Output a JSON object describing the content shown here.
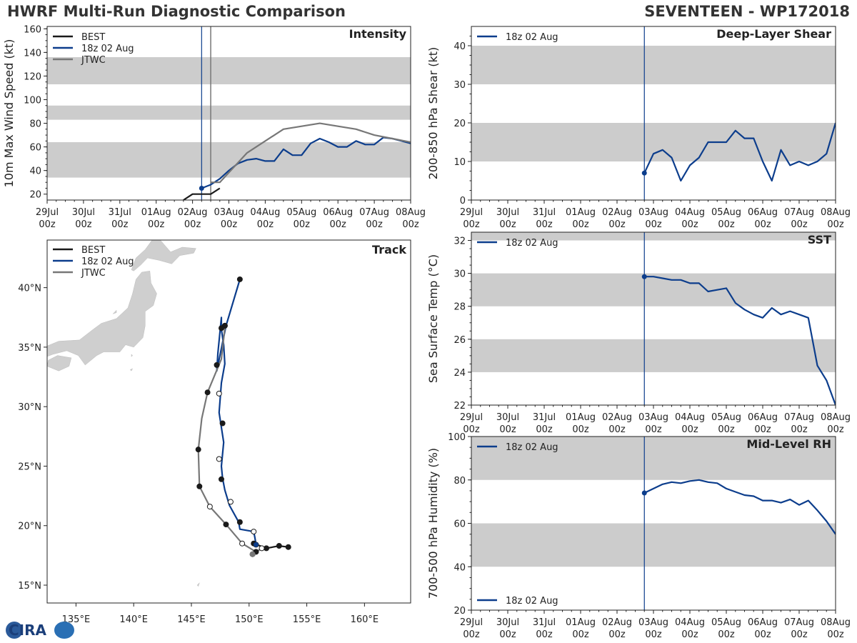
{
  "header": {
    "title_left": "HWRF Multi-Run Diagnostic Comparison",
    "title_right": "SEVENTEEN - WP172018"
  },
  "logo": {
    "text": "CIRA"
  },
  "colors": {
    "best": "#1a1a1a",
    "hwrf": "#0c3d8c",
    "jtwc": "#777777",
    "band": "#cccccc",
    "axis": "#222222"
  },
  "time_ticks": [
    "29Jul\n00z",
    "30Jul\n00z",
    "31Jul\n00z",
    "01Aug\n00z",
    "02Aug\n00z",
    "03Aug\n00z",
    "04Aug\n00z",
    "05Aug\n00z",
    "06Aug\n00z",
    "07Aug\n00z",
    "08Aug\n00z"
  ],
  "chart_data": [
    {
      "id": "intensity",
      "type": "line",
      "title": "Intensity",
      "ylabel": "10m Max Wind Speed (kt)",
      "xlim": [
        0,
        240
      ],
      "ylim": [
        15,
        162
      ],
      "yticks": [
        20,
        40,
        60,
        80,
        100,
        120,
        140,
        160
      ],
      "bands": [
        [
          34,
          64
        ],
        [
          83,
          95
        ],
        [
          113,
          136
        ]
      ],
      "init_hour": 102,
      "jtwc_line_hour": 108,
      "legend": [
        "BEST",
        "18z 02 Aug",
        "JTWC"
      ],
      "series": [
        {
          "name": "BEST",
          "color_key": "best",
          "hours": [
            90,
            96,
            102,
            108,
            114
          ],
          "values": [
            15,
            20,
            20,
            20,
            25
          ]
        },
        {
          "name": "18z 02 Aug",
          "color_key": "hwrf",
          "marker_first": true,
          "hours": [
            102,
            108,
            114,
            120,
            126,
            132,
            138,
            144,
            150,
            156,
            162,
            168,
            174,
            180,
            186,
            192,
            198,
            204,
            210,
            216,
            222,
            228,
            234,
            240
          ],
          "values": [
            25,
            28,
            33,
            40,
            46,
            49,
            50,
            48,
            48,
            58,
            53,
            53,
            63,
            67,
            64,
            60,
            60,
            65,
            62,
            62,
            68,
            67,
            65,
            63
          ]
        },
        {
          "name": "JTWC",
          "color_key": "jtwc",
          "hours": [
            108,
            114,
            132,
            156,
            180,
            204,
            216,
            228,
            240
          ],
          "values": [
            30,
            30,
            55,
            75,
            80,
            75,
            70,
            67,
            64
          ]
        }
      ]
    },
    {
      "id": "shear",
      "type": "line",
      "title": "Deep-Layer Shear",
      "ylabel": "200-850 hPa Shear (kt)",
      "xlim": [
        0,
        240
      ],
      "ylim": [
        0,
        45
      ],
      "yticks": [
        0,
        10,
        20,
        30,
        40
      ],
      "bands": [
        [
          10,
          20
        ],
        [
          30,
          40
        ]
      ],
      "init_hour": 114,
      "legend": [
        "18z 02 Aug"
      ],
      "series": [
        {
          "name": "18z 02 Aug",
          "color_key": "hwrf",
          "marker_first": true,
          "hours": [
            114,
            120,
            126,
            132,
            138,
            144,
            150,
            156,
            162,
            168,
            174,
            180,
            186,
            192,
            198,
            204,
            210,
            216,
            222,
            228,
            234,
            240
          ],
          "values": [
            7,
            12,
            13,
            11,
            5,
            9,
            11,
            15,
            15,
            15,
            18,
            16,
            16,
            10,
            5,
            13,
            9,
            10,
            9,
            10,
            12,
            20
          ]
        }
      ]
    },
    {
      "id": "sst",
      "type": "line",
      "title": "SST",
      "ylabel": "Sea Surface Temp (°C)",
      "xlim": [
        0,
        240
      ],
      "ylim": [
        22,
        32.5
      ],
      "yticks": [
        22,
        24,
        26,
        28,
        30,
        32
      ],
      "bands": [
        [
          24,
          26
        ],
        [
          28,
          30
        ],
        [
          32,
          32.5
        ]
      ],
      "init_hour": 114,
      "legend": [
        "18z 02 Aug"
      ],
      "series": [
        {
          "name": "18z 02 Aug",
          "color_key": "hwrf",
          "marker_first": true,
          "hours": [
            114,
            120,
            126,
            132,
            138,
            144,
            150,
            156,
            162,
            168,
            174,
            180,
            186,
            192,
            198,
            204,
            210,
            216,
            222,
            228,
            234,
            240
          ],
          "values": [
            29.8,
            29.8,
            29.7,
            29.6,
            29.6,
            29.4,
            29.4,
            28.9,
            29.0,
            29.1,
            28.2,
            27.8,
            27.5,
            27.3,
            27.9,
            27.5,
            27.7,
            27.5,
            27.3,
            24.4,
            23.5,
            22.0
          ]
        }
      ]
    },
    {
      "id": "rh",
      "type": "line",
      "title": "Mid-Level RH",
      "ylabel": "700-500 hPa Humidity (%)",
      "xlim": [
        0,
        240
      ],
      "ylim": [
        20,
        100
      ],
      "yticks": [
        20,
        40,
        60,
        80,
        100
      ],
      "bands": [
        [
          40,
          60
        ],
        [
          80,
          100
        ]
      ],
      "init_hour": 114,
      "legend": [
        "18z 02 Aug"
      ],
      "series": [
        {
          "name": "18z 02 Aug",
          "color_key": "hwrf",
          "marker_first": true,
          "hours": [
            114,
            120,
            126,
            132,
            138,
            144,
            150,
            156,
            162,
            168,
            174,
            180,
            186,
            192,
            198,
            204,
            210,
            216,
            222,
            228,
            234,
            240
          ],
          "values": [
            74,
            76,
            78,
            79,
            78.5,
            79.5,
            80,
            79,
            78.5,
            76,
            74.5,
            73,
            72.5,
            70.5,
            70.5,
            69.5,
            71,
            68.5,
            70.5,
            66,
            61,
            55
          ]
        }
      ]
    },
    {
      "id": "track",
      "type": "scatter",
      "title": "Track",
      "xlim": [
        132.5,
        164
      ],
      "ylim": [
        13.5,
        44
      ],
      "xticks": [
        135,
        140,
        145,
        150,
        155,
        160
      ],
      "yticks": [
        15,
        20,
        25,
        30,
        35,
        40
      ],
      "xtick_labels": [
        "135°E",
        "140°E",
        "145°E",
        "150°E",
        "155°E",
        "160°E"
      ],
      "ytick_labels": [
        "15°N",
        "20°N",
        "25°N",
        "30°N",
        "35°N",
        "40°N"
      ],
      "legend": [
        "BEST",
        "18z 02 Aug",
        "JTWC"
      ],
      "land": [
        {
          "name": "Hokkaido",
          "points": [
            [
              139.8,
              41.5
            ],
            [
              140.2,
              42.5
            ],
            [
              141.0,
              43.2
            ],
            [
              141.6,
              44.0
            ],
            [
              142.3,
              44.0
            ],
            [
              143.2,
              43.0
            ],
            [
              144.2,
              43.4
            ],
            [
              145.4,
              43.3
            ],
            [
              145.2,
              42.9
            ],
            [
              144.0,
              42.7
            ],
            [
              143.3,
              42.0
            ],
            [
              142.2,
              42.3
            ],
            [
              141.2,
              42.5
            ],
            [
              140.6,
              41.9
            ],
            [
              140.0,
              41.4
            ]
          ]
        },
        {
          "name": "Honshu",
          "points": [
            [
              140.7,
              41.3
            ],
            [
              141.4,
              41.4
            ],
            [
              141.5,
              40.4
            ],
            [
              142.0,
              39.5
            ],
            [
              141.7,
              38.5
            ],
            [
              141.0,
              38.0
            ],
            [
              141.0,
              36.8
            ],
            [
              140.8,
              35.8
            ],
            [
              140.0,
              35.0
            ],
            [
              139.3,
              35.2
            ],
            [
              138.8,
              34.6
            ],
            [
              137.4,
              34.6
            ],
            [
              136.8,
              34.3
            ],
            [
              135.8,
              33.5
            ],
            [
              135.2,
              34.3
            ],
            [
              134.2,
              34.7
            ],
            [
              133.0,
              34.4
            ],
            [
              131.9,
              34.0
            ],
            [
              131.0,
              34.1
            ],
            [
              132.0,
              34.9
            ],
            [
              133.5,
              35.5
            ],
            [
              135.3,
              35.6
            ],
            [
              136.5,
              36.5
            ],
            [
              137.2,
              37.0
            ],
            [
              138.5,
              37.4
            ],
            [
              139.5,
              38.3
            ],
            [
              139.9,
              39.5
            ],
            [
              140.2,
              40.7
            ]
          ]
        },
        {
          "name": "Shikoku",
          "points": [
            [
              132.5,
              33.4
            ],
            [
              133.5,
              33.0
            ],
            [
              134.4,
              33.4
            ],
            [
              134.6,
              34.1
            ],
            [
              133.4,
              34.3
            ],
            [
              132.6,
              33.9
            ]
          ]
        },
        {
          "name": "Kyushu",
          "points": [
            [
              132.5,
              33.9
            ],
            [
              132.0,
              33.0
            ],
            [
              131.7,
              32.0
            ],
            [
              131.3,
              31.3
            ],
            [
              132.5,
              31.3
            ],
            [
              132.5,
              33.9
            ]
          ]
        },
        {
          "name": "Sado",
          "points": [
            [
              138.2,
              37.8
            ],
            [
              138.5,
              38.1
            ],
            [
              138.5,
              37.9
            ]
          ]
        },
        {
          "name": "Izu",
          "points": [
            [
              139.8,
              34.2
            ],
            [
              139.9,
              34.3
            ],
            [
              139.8,
              34.4
            ]
          ]
        },
        {
          "name": "Hachijo",
          "points": [
            [
              139.7,
              33.1
            ],
            [
              139.9,
              33.2
            ],
            [
              139.8,
              33.0
            ]
          ]
        },
        {
          "name": "Marcus",
          "points": [
            [
              145.5,
              15.0
            ],
            [
              145.7,
              15.2
            ],
            [
              145.6,
              14.9
            ]
          ]
        }
      ],
      "series": [
        {
          "name": "BEST",
          "color_key": "best",
          "lon": [
            153.4,
            152.6,
            151.5,
            150.4
          ],
          "lat": [
            18.2,
            18.3,
            18.1,
            18.5
          ]
        },
        {
          "name": "18z 02 Aug",
          "color_key": "hwrf",
          "lon": [
            150.6,
            150.5,
            150.4,
            149.2,
            149.1,
            148.3,
            147.9,
            147.7,
            147.6,
            147.8,
            147.4,
            147.6,
            147.9,
            147.8,
            147.6,
            147.6,
            147.3,
            147.2,
            148.0,
            149.2
          ],
          "lat": [
            18.4,
            19.0,
            19.5,
            19.7,
            20.3,
            21.7,
            23.0,
            24.0,
            25.0,
            27.0,
            29.5,
            32.0,
            33.6,
            35.2,
            36.5,
            37.5,
            34.5,
            33.0,
            36.8,
            40.7
          ],
          "markers_lon": [
            150.6,
            150.4,
            149.2,
            148.4,
            147.6,
            147.4,
            147.7,
            147.4,
            147.2,
            147.9,
            149.2
          ],
          "markers_lat": [
            18.4,
            19.5,
            20.3,
            22.0,
            23.9,
            25.6,
            28.6,
            31.1,
            33.5,
            36.8,
            40.7
          ],
          "markers_filled": [
            true,
            false,
            true,
            false,
            true,
            false,
            true,
            false,
            true,
            true,
            true
          ]
        },
        {
          "name": "JTWC",
          "color_key": "jtwc",
          "lon": [
            150.3,
            151.1,
            150.6,
            149.4,
            148.0,
            146.6,
            145.7,
            145.6,
            145.9,
            146.4,
            147.6,
            147.9
          ],
          "lat": [
            17.6,
            18.1,
            17.8,
            18.5,
            20.1,
            21.6,
            23.3,
            26.4,
            29.0,
            31.2,
            34.0,
            36.6
          ],
          "markers_lon": [
            150.3,
            151.1,
            150.6,
            149.4,
            148.0,
            146.6,
            145.7,
            145.6,
            146.4,
            147.6,
            147.9
          ],
          "markers_lat": [
            17.6,
            18.1,
            17.8,
            18.5,
            20.1,
            21.6,
            23.3,
            26.4,
            31.2,
            36.6,
            36.8
          ],
          "markers_filled": [
            false,
            false,
            true,
            false,
            true,
            false,
            true,
            true,
            true,
            true,
            true
          ]
        }
      ]
    }
  ]
}
